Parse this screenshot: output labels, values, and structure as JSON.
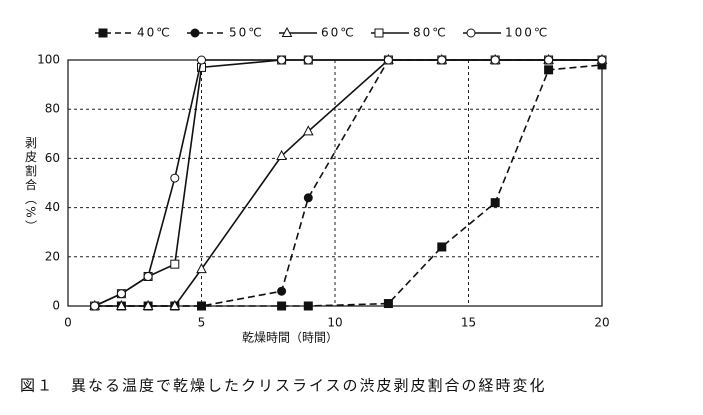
{
  "chart_data": {
    "type": "line",
    "caption": "図１　異なる温度で乾燥したクリスライスの渋皮剥皮割合の経時変化",
    "x_label": "乾燥時間（時間）",
    "y_label": "剥皮割合（%）",
    "x": [
      1,
      2,
      3,
      4,
      5,
      8,
      9,
      12,
      14,
      16,
      18,
      20
    ],
    "series": [
      {
        "name": "40℃",
        "color": "#111111",
        "dashed": true,
        "marker": "square",
        "filled": true,
        "values": [
          0,
          0,
          0,
          0,
          0,
          0,
          0,
          1,
          24,
          42,
          96,
          98
        ]
      },
      {
        "name": "50℃",
        "color": "#111111",
        "dashed": true,
        "marker": "circle",
        "filled": true,
        "values": [
          0,
          0,
          0,
          0,
          0,
          6,
          44,
          100,
          100,
          100,
          100,
          100
        ]
      },
      {
        "name": "60℃",
        "color": "#111111",
        "dashed": false,
        "marker": "triangle",
        "filled": false,
        "values": [
          0,
          0,
          0,
          0,
          15,
          61,
          71,
          100,
          100,
          100,
          100,
          100
        ]
      },
      {
        "name": "80℃",
        "color": "#111111",
        "dashed": false,
        "marker": "square",
        "filled": false,
        "values": [
          0,
          5,
          12,
          17,
          97,
          100,
          100,
          100,
          100,
          100,
          100,
          100
        ]
      },
      {
        "name": "100℃",
        "color": "#111111",
        "dashed": false,
        "marker": "circle",
        "filled": false,
        "values": [
          0,
          5,
          12,
          52,
          100,
          100,
          100,
          100,
          100,
          100,
          100,
          100
        ]
      }
    ],
    "xlim": [
      0,
      20
    ],
    "xticks": [
      0,
      5,
      10,
      15,
      20
    ],
    "ylim": [
      0,
      100
    ],
    "yticks": [
      0,
      20,
      40,
      60,
      80,
      100
    ],
    "grid": true
  }
}
